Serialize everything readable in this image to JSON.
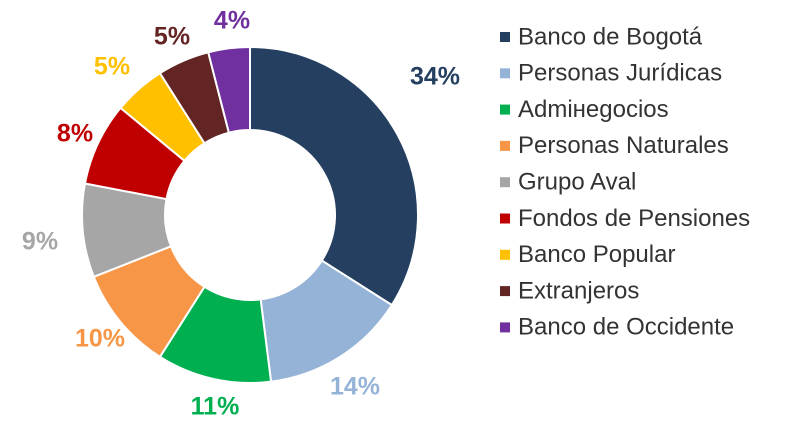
{
  "chart_data": {
    "type": "donut",
    "categories": [
      "Banco de Bogotá",
      "Personas Jurídicas",
      "Admінegocios",
      "Personas Naturales",
      "Grupo Aval",
      "Fondos de Pensiones",
      "Banco Popular",
      "Extranjeros",
      "Banco de Occidente"
    ],
    "values": [
      34,
      14,
      11,
      10,
      9,
      8,
      5,
      5,
      4
    ],
    "value_labels": [
      "34%",
      "14%",
      "11%",
      "10%",
      "9%",
      "8%",
      "5%",
      "5%",
      "4%"
    ],
    "colors": [
      "#243f60",
      "#95b3d7",
      "#00b050",
      "#f79646",
      "#a6a6a6",
      "#c00000",
      "#ffc000",
      "#632523",
      "#7030a0"
    ],
    "legend": "right"
  }
}
